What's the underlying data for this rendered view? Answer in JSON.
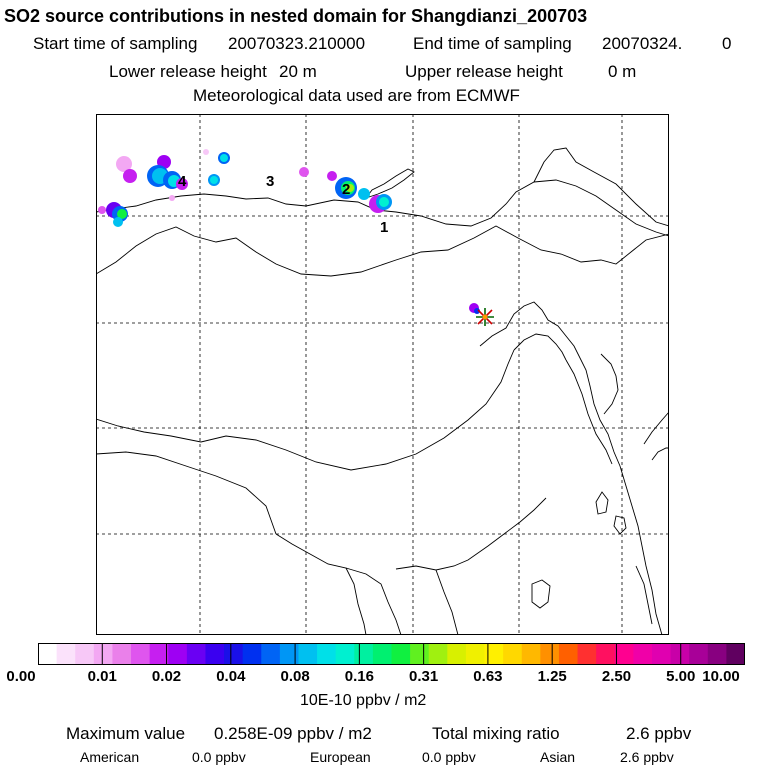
{
  "title": "SO2 source contributions in nested domain for Shangdianzi_200703",
  "header": {
    "start_label": "Start time of sampling",
    "start_value": "20070323.210000",
    "end_label": "End time of sampling",
    "end_value": "20070324.",
    "end_suffix": "0",
    "lower_label": "Lower release height",
    "lower_value": "20 m",
    "upper_label": "Upper release height",
    "upper_value": "0 m",
    "met_line": "Meteorological data used are from ECMWF"
  },
  "map": {
    "source_labels": [
      "1",
      "2",
      "3",
      "4"
    ],
    "receptor_marker": "Shangdianzi"
  },
  "colorbar": {
    "ticks": [
      "0.00",
      "0.01",
      "0.02",
      "0.04",
      "0.08",
      "0.16",
      "0.31",
      "0.63",
      "1.25",
      "2.50",
      "5.00",
      "10.00"
    ],
    "units": "10E-10 ppbv / m2",
    "colors": [
      "#ffffff",
      "#fbe2fb",
      "#f7c8f7",
      "#f3a8f3",
      "#ea80ea",
      "#df55ee",
      "#c61ff0",
      "#9e00f3",
      "#6a00f3",
      "#3a00f0",
      "#1a10e8",
      "#0030f0",
      "#0064f5",
      "#0096f5",
      "#00c0f0",
      "#00e0e8",
      "#00f0d0",
      "#00f0a0",
      "#00f070",
      "#10f040",
      "#60f020",
      "#a0f010",
      "#d8f000",
      "#f0f000",
      "#fff000",
      "#ffd800",
      "#ffb800",
      "#ff9000",
      "#ff6000",
      "#ff3030",
      "#ff1060",
      "#ff0090",
      "#f000a8",
      "#e000b0",
      "#c800a8",
      "#a80098",
      "#880080",
      "#600060"
    ]
  },
  "summary": {
    "max_label": "Maximum value",
    "max_value": "0.258E-09 ppbv / m2",
    "total_label": "Total mixing ratio",
    "total_value": "2.6 ppbv",
    "american_label": "American",
    "american_value": "0.0 ppbv",
    "european_label": "European",
    "european_value": "0.0 ppbv",
    "asian_label": "Asian",
    "asian_value": "2.6 ppbv"
  }
}
